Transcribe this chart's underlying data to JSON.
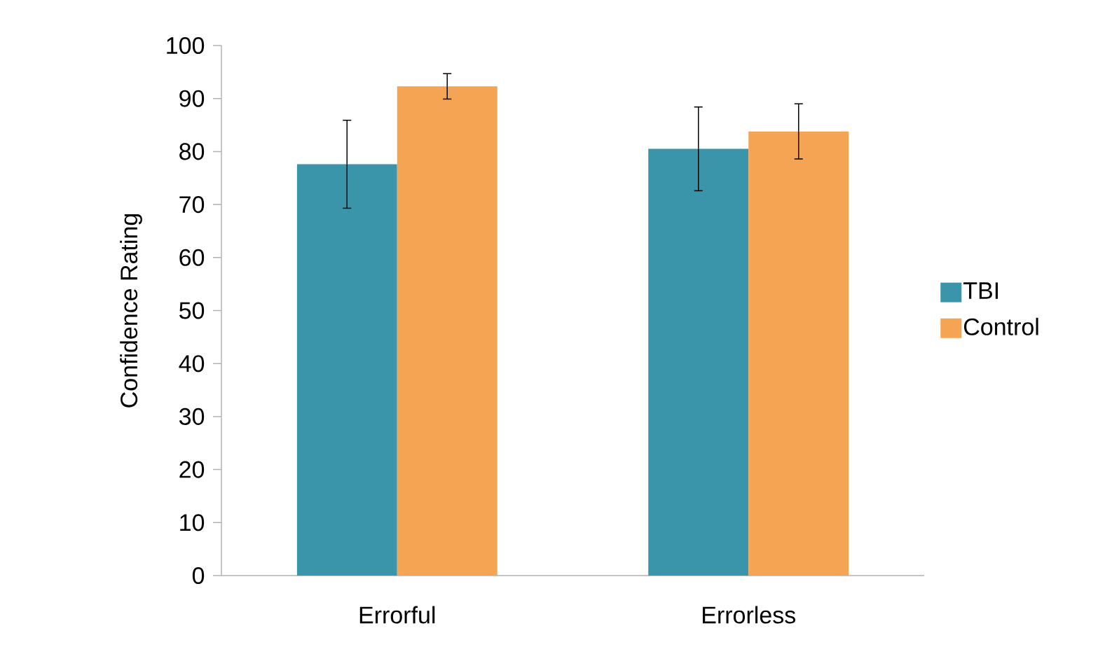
{
  "chart_data": {
    "type": "bar",
    "ylabel": "Confidence Rating",
    "categories": [
      "Errorful",
      "Errorless"
    ],
    "series": [
      {
        "name": "TBI",
        "color": "#3a95ab",
        "values": [
          77.6,
          80.5
        ],
        "errors": [
          8.3,
          7.9
        ]
      },
      {
        "name": "Control",
        "color": "#f5a454",
        "values": [
          92.3,
          83.8
        ],
        "errors": [
          2.4,
          5.2
        ]
      }
    ],
    "ylim": [
      0,
      100
    ],
    "yticks": [
      0,
      10,
      20,
      30,
      40,
      50,
      60,
      70,
      80,
      90,
      100
    ],
    "grid": false,
    "legend": "right"
  }
}
